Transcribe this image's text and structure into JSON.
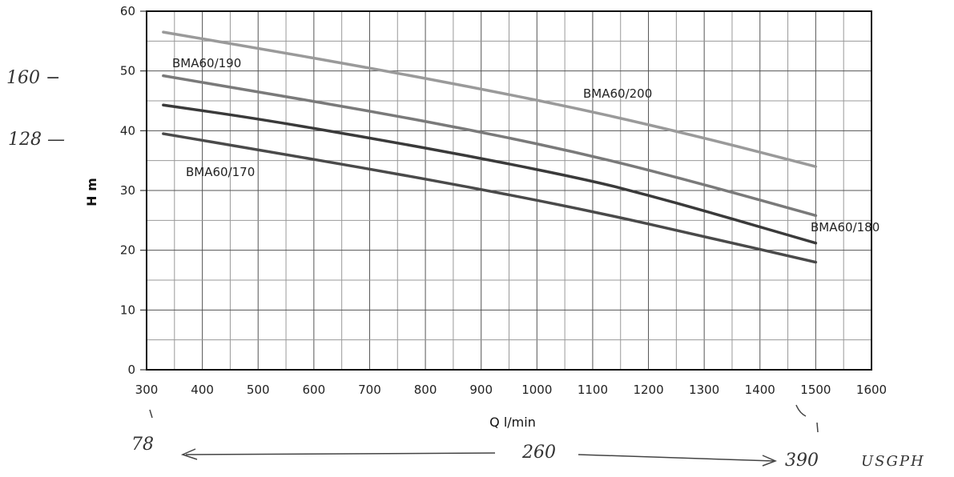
{
  "chart_data": {
    "type": "line",
    "xlabel": "Q l/min",
    "ylabel": "H m",
    "xlim": [
      300,
      1600
    ],
    "ylim": [
      0,
      60
    ],
    "x_ticks": [
      "300",
      "400",
      "500",
      "600",
      "700",
      "800",
      "900",
      "1000",
      "1100",
      "1200",
      "1300",
      "1400",
      "1500",
      "1600"
    ],
    "y_ticks": [
      "0",
      "10",
      "20",
      "30",
      "40",
      "50",
      "60"
    ],
    "grid": true,
    "series": [
      {
        "name": "BMA60/200",
        "color": "#9a9a9a",
        "x": [
          330,
          500,
          700,
          900,
          1100,
          1300,
          1500
        ],
        "y": [
          56.5,
          53.8,
          50.5,
          47.0,
          43.2,
          38.8,
          34.0
        ]
      },
      {
        "name": "BMA60/190",
        "color": "#7a7a7a",
        "x": [
          330,
          500,
          700,
          900,
          1100,
          1300,
          1500
        ],
        "y": [
          49.2,
          46.5,
          43.3,
          39.8,
          35.8,
          31.0,
          25.8
        ]
      },
      {
        "name": "BMA60/180",
        "color": "#3a3a3a",
        "x": [
          330,
          500,
          700,
          900,
          1100,
          1200,
          1300,
          1400,
          1500
        ],
        "y": [
          44.3,
          42.0,
          38.8,
          35.4,
          31.6,
          29.2,
          26.6,
          23.9,
          21.2
        ]
      },
      {
        "name": "BMA60/170",
        "color": "#4a4a4a",
        "x": [
          330,
          500,
          700,
          900,
          1100,
          1300,
          1500
        ],
        "y": [
          39.5,
          36.8,
          33.6,
          30.2,
          26.5,
          22.3,
          18.0
        ]
      }
    ]
  },
  "handwritten": {
    "left_160": "160 −",
    "left_128": "128 —",
    "bottom_78": "78",
    "bottom_260": "260",
    "bottom_390": "390",
    "unit": "USGPH"
  }
}
